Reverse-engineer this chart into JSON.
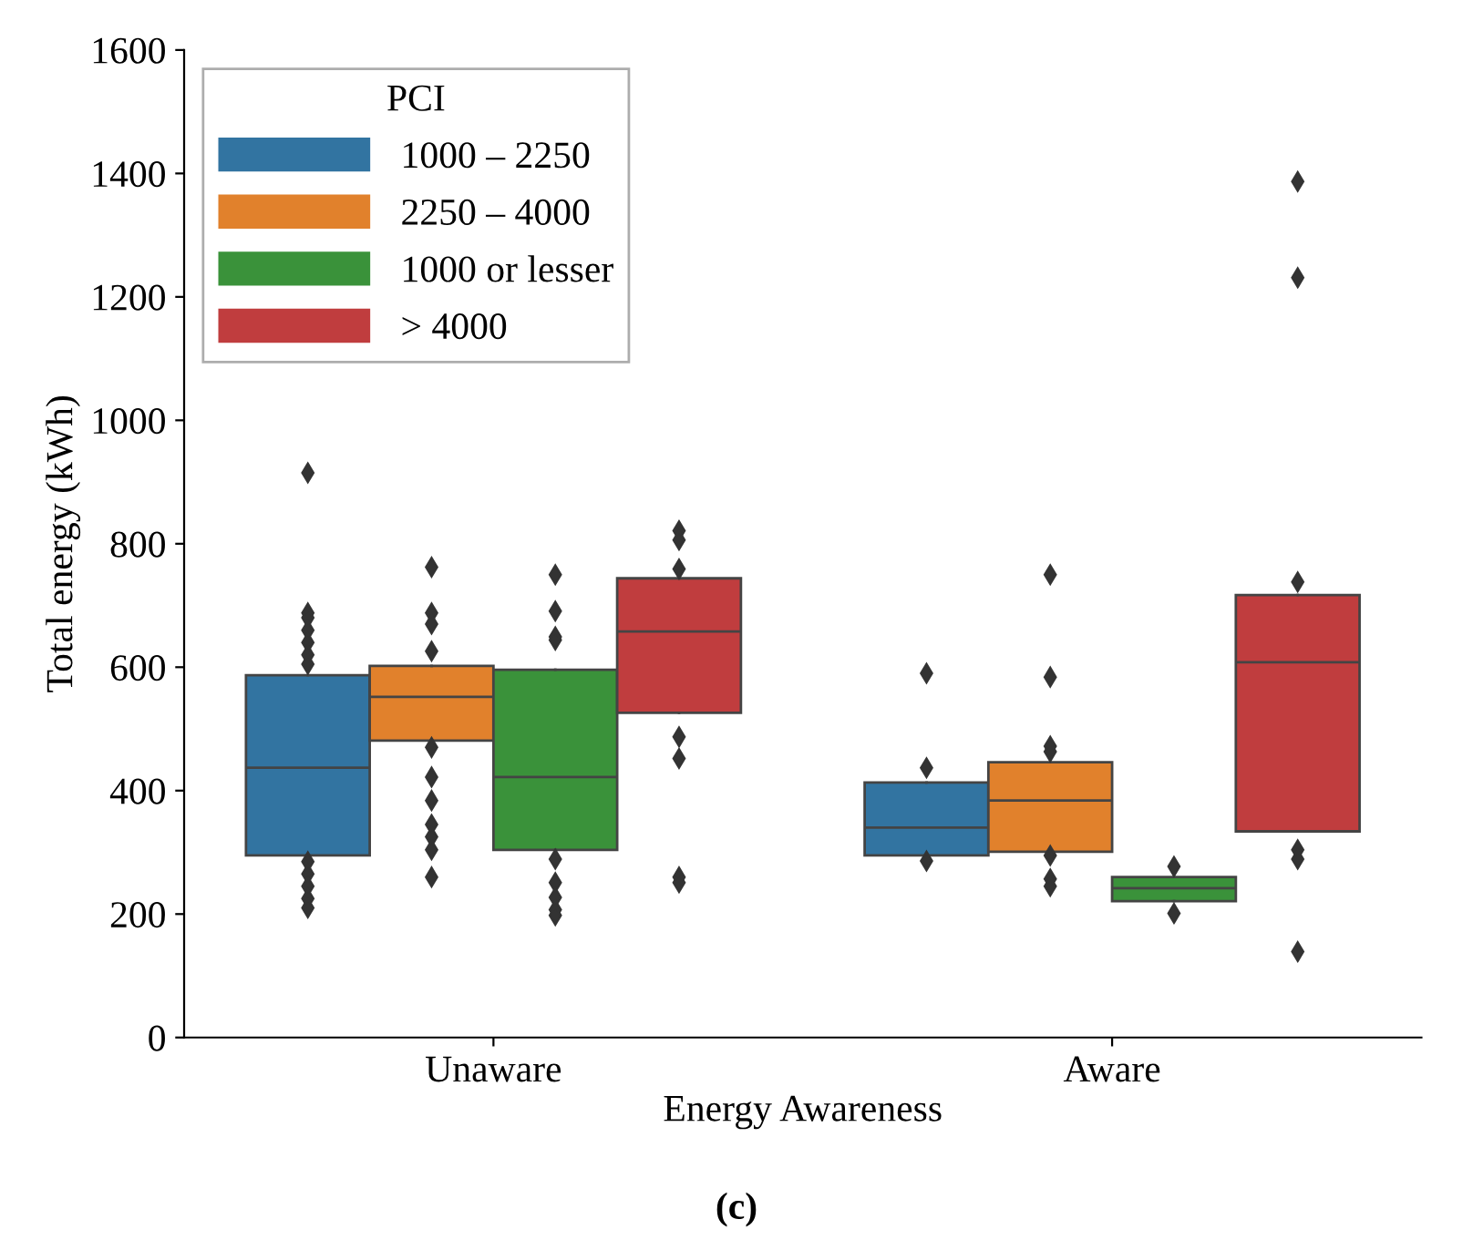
{
  "chart_data": {
    "type": "box",
    "xlabel": "Energy Awareness",
    "ylabel": "Total energy (kWh)",
    "legend_title": "PCI",
    "legend": "top left",
    "grid": false,
    "marker": "diamond",
    "categories": [
      "Unaware",
      "Aware"
    ],
    "ylim": [
      0,
      1600
    ],
    "yticks": [
      0,
      200,
      400,
      600,
      800,
      1000,
      1200,
      1400,
      1600
    ],
    "annotations": [
      "(c)"
    ],
    "series": [
      {
        "name": "1000 – 2250",
        "color": "#3274a1",
        "boxes": [
          {
            "low": 295,
            "q1": 295,
            "median": 437,
            "q3": 587,
            "high": 587,
            "outliers": [
              915,
              688,
              680,
              660,
              640,
              620,
              605,
              285,
              265,
              245,
              225,
              210
            ]
          },
          {
            "low": 295,
            "q1": 295,
            "median": 340,
            "q3": 413,
            "high": 413,
            "outliers": [
              590,
              437,
              286
            ]
          }
        ]
      },
      {
        "name": "2250 – 4000",
        "color": "#e1812c",
        "boxes": [
          {
            "low": 481,
            "q1": 481,
            "median": 552,
            "q3": 602,
            "high": 602,
            "outliers": [
              762,
              688,
              670,
              626,
              470,
              422,
              384,
              345,
              325,
              304,
              260
            ]
          },
          {
            "low": 301,
            "q1": 301,
            "median": 384,
            "q3": 446,
            "high": 446,
            "outliers": [
              750,
              584,
              472,
              463,
              295,
              257,
              245
            ]
          }
        ]
      },
      {
        "name": "1000 or lesser",
        "color": "#3a923a",
        "boxes": [
          {
            "low": 304,
            "q1": 304,
            "median": 422,
            "q3": 596,
            "high": 596,
            "outliers": [
              750,
              691,
              649,
              644,
              289,
              251,
              227,
              207,
              198
            ]
          },
          {
            "low": 221,
            "q1": 221,
            "median": 242,
            "q3": 260,
            "high": 260,
            "outliers": [
              277,
              201
            ]
          }
        ]
      },
      {
        "name": "> 4000",
        "color": "#c03d3e",
        "boxes": [
          {
            "low": 526,
            "q1": 526,
            "median": 658,
            "q3": 744,
            "high": 744,
            "outliers": [
              821,
              806,
              759,
              487,
              452,
              260,
              251
            ]
          },
          {
            "low": 334,
            "q1": 334,
            "median": 608,
            "q3": 717,
            "high": 717,
            "outliers": [
              1387,
              1231,
              738,
              304,
              289,
              139
            ]
          }
        ]
      }
    ]
  }
}
